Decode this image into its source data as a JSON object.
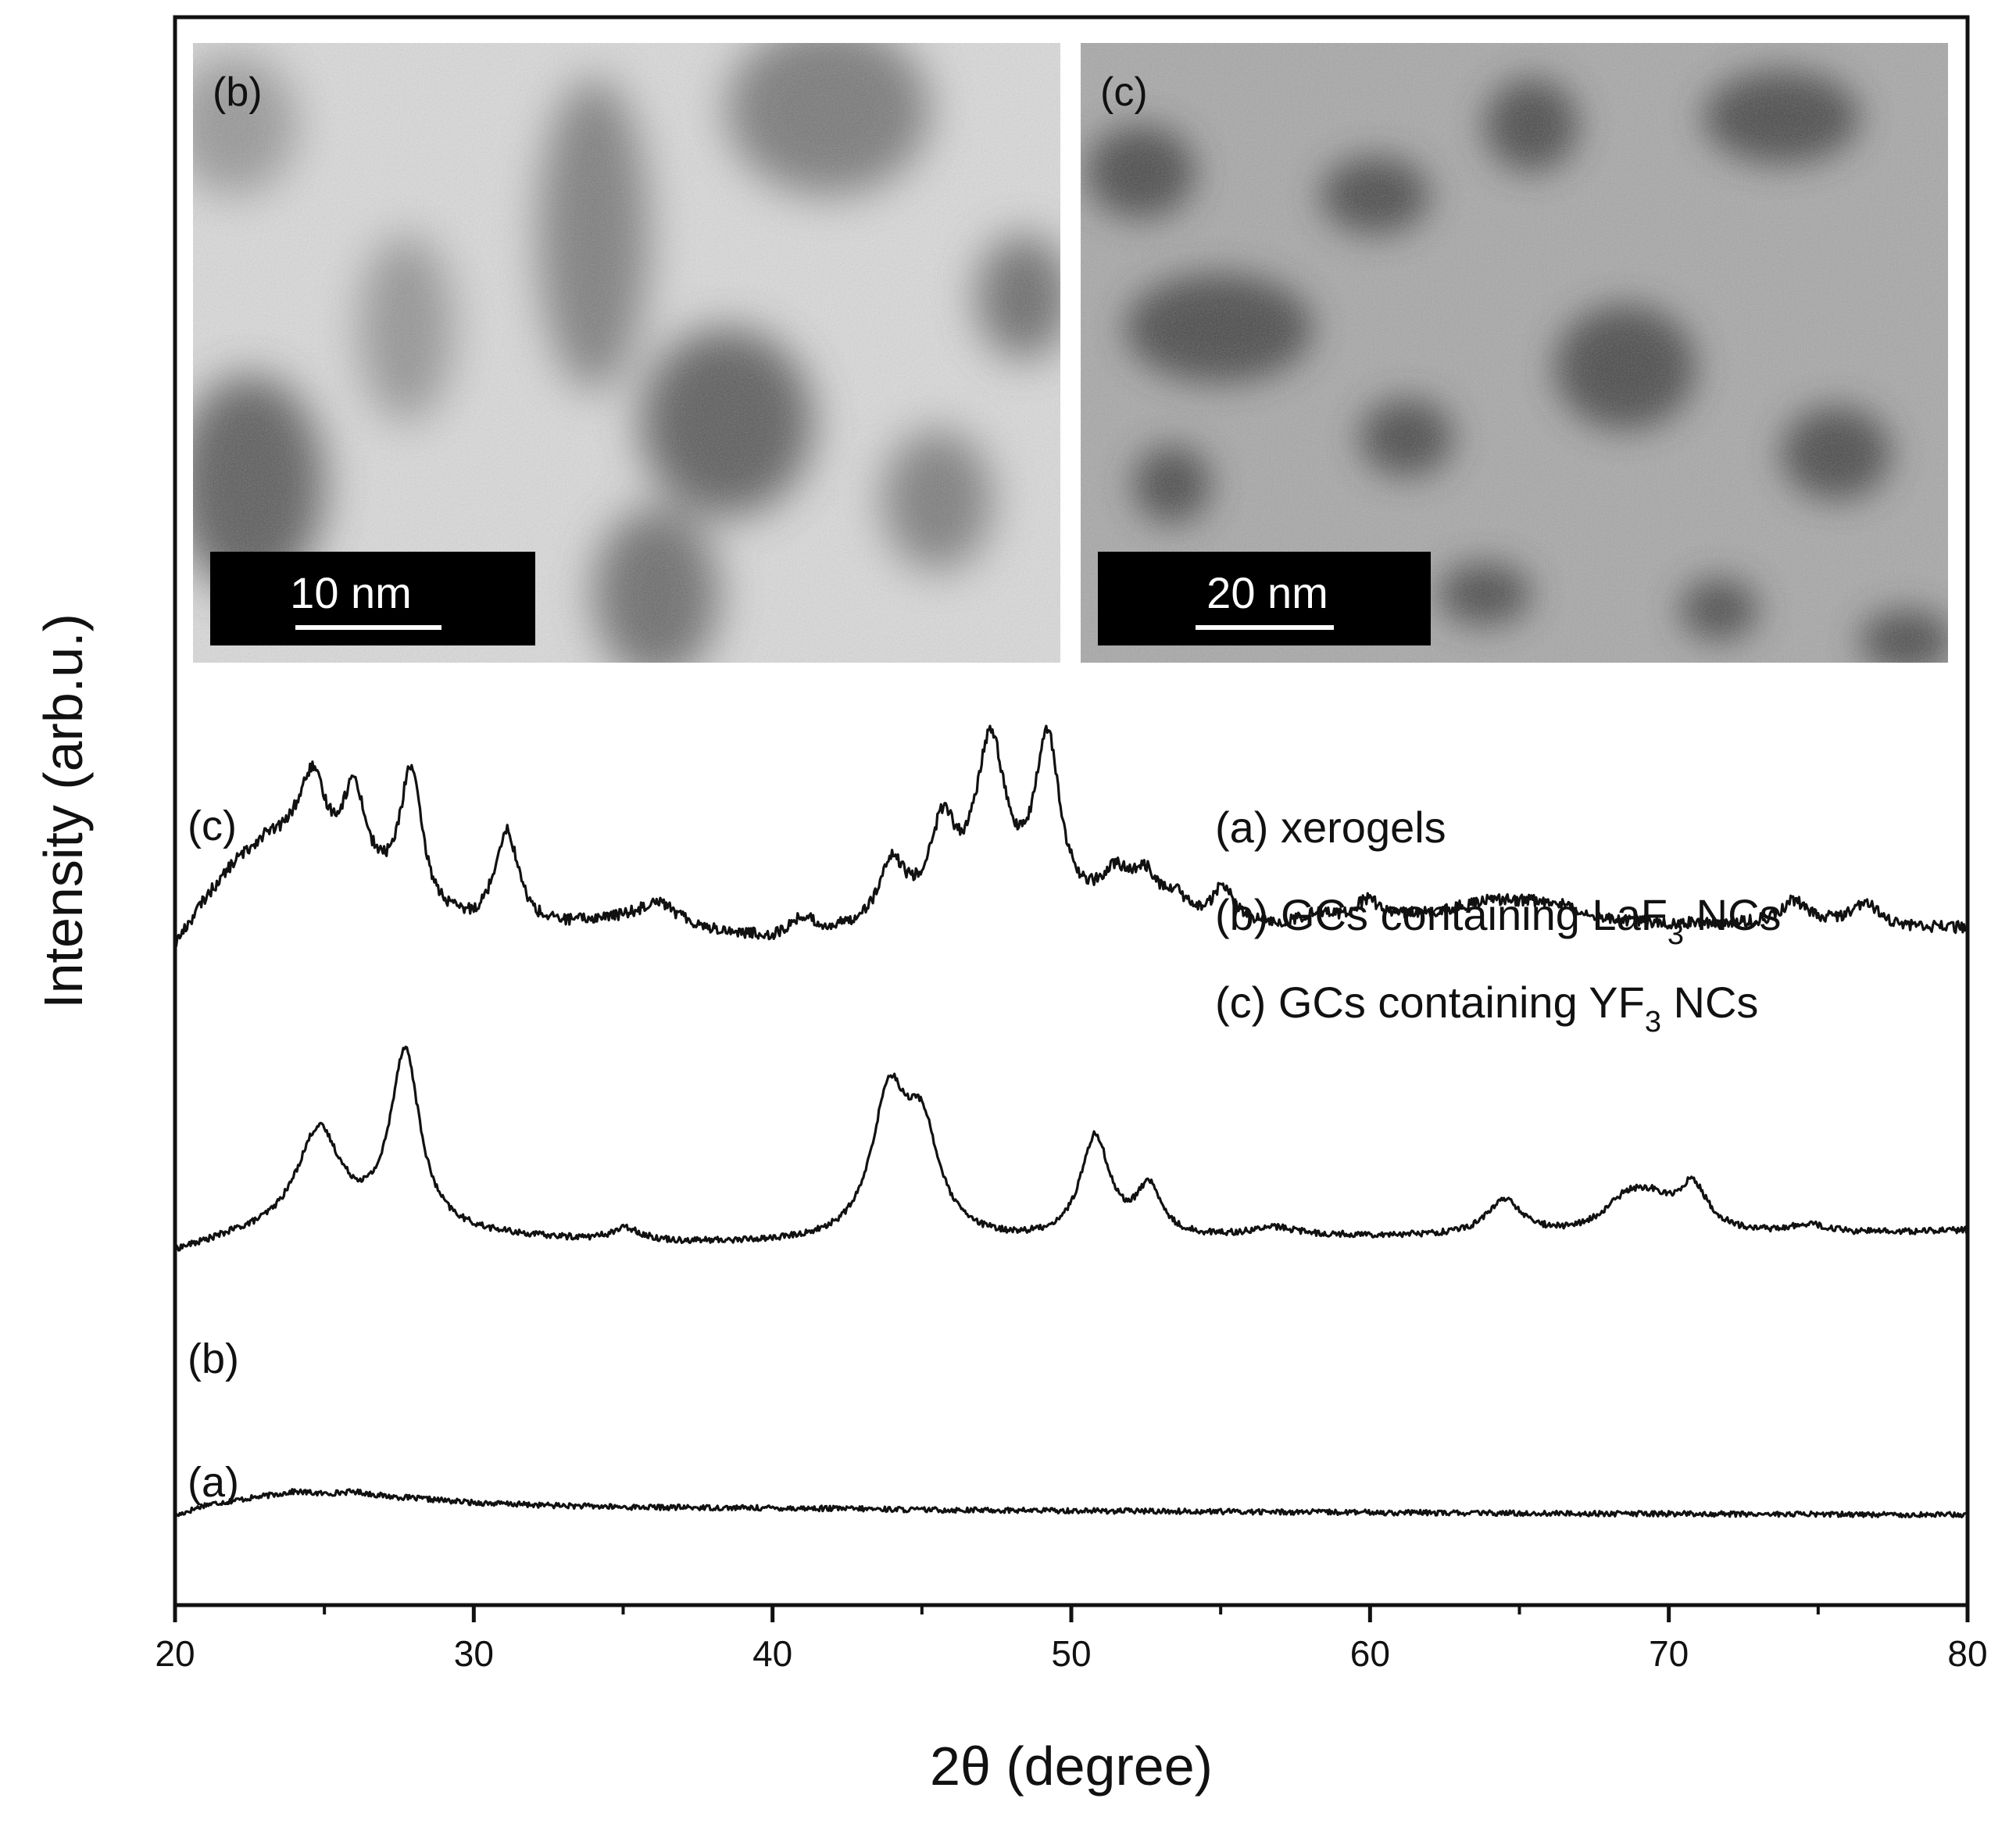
{
  "chart_data": {
    "type": "line",
    "xlabel": "2θ (degree)",
    "ylabel": "Intensity (arb.u.)",
    "xlim": [
      20,
      80
    ],
    "xticks": [
      20,
      30,
      40,
      50,
      60,
      70,
      80
    ],
    "y_ticks_shown": false,
    "grid": false,
    "legend_position": "right, below insets",
    "legend": [
      {
        "prefix": "(a) xerogels",
        "sub": "",
        "suffix": ""
      },
      {
        "prefix": "(b) GCs containing LaF",
        "sub": "3",
        "suffix": " NCs"
      },
      {
        "prefix": "(c) GCs containing YF",
        "sub": "3",
        "suffix": " NCs"
      }
    ],
    "series": [
      {
        "name": "(a)",
        "baseline": 2.0,
        "x": [
          20,
          21,
          22,
          23,
          24,
          25,
          26,
          27,
          28,
          29,
          30,
          32,
          35,
          40,
          43,
          45,
          50,
          55,
          60,
          65,
          70,
          75,
          80
        ],
        "y": [
          0.0,
          0.25,
          0.35,
          0.45,
          0.55,
          0.5,
          0.55,
          0.45,
          0.4,
          0.35,
          0.3,
          0.25,
          0.2,
          0.18,
          0.16,
          0.14,
          0.12,
          0.1,
          0.08,
          0.06,
          0.05,
          0.04,
          0.03
        ],
        "peaks": []
      },
      {
        "name": "(b)",
        "baseline": 7.9,
        "x": [
          20,
          22,
          25,
          30,
          35,
          40,
          45,
          50,
          55,
          60,
          65,
          70,
          75,
          80
        ],
        "y": [
          0.0,
          0.3,
          0.5,
          0.35,
          0.2,
          0.18,
          0.18,
          0.2,
          0.3,
          0.35,
          0.35,
          0.4,
          0.4,
          0.5
        ],
        "peaks": [
          {
            "pos": 24.8,
            "height": 2.2,
            "width": 0.9
          },
          {
            "pos": 27.7,
            "height": 4.0,
            "width": 0.6
          },
          {
            "pos": 35.1,
            "height": 0.3,
            "width": 0.6
          },
          {
            "pos": 43.9,
            "height": 3.1,
            "width": 0.7
          },
          {
            "pos": 45.0,
            "height": 2.3,
            "width": 0.7
          },
          {
            "pos": 50.8,
            "height": 2.3,
            "width": 0.6
          },
          {
            "pos": 52.6,
            "height": 1.1,
            "width": 0.5
          },
          {
            "pos": 56.8,
            "height": 0.2,
            "width": 1.0
          },
          {
            "pos": 64.5,
            "height": 0.8,
            "width": 0.7
          },
          {
            "pos": 68.6,
            "height": 0.7,
            "width": 0.9
          },
          {
            "pos": 69.5,
            "height": 0.5,
            "width": 0.8
          },
          {
            "pos": 70.8,
            "height": 1.0,
            "width": 0.6
          },
          {
            "pos": 74.7,
            "height": 0.2,
            "width": 0.8
          }
        ]
      },
      {
        "name": "(c)",
        "baseline": 14.8,
        "x": [
          20,
          21,
          22,
          23,
          24,
          26,
          28,
          30,
          32,
          34,
          36,
          38,
          40,
          42,
          44,
          46,
          48,
          50,
          52,
          54,
          56,
          58,
          60,
          62,
          64,
          66,
          68,
          70,
          72,
          74,
          76,
          78,
          80
        ],
        "y": [
          0.0,
          1.0,
          1.8,
          2.3,
          2.3,
          1.5,
          0.6,
          0.3,
          0.3,
          0.5,
          0.7,
          0.3,
          0.1,
          0.2,
          0.5,
          0.7,
          0.7,
          0.6,
          0.6,
          0.5,
          0.4,
          0.4,
          0.6,
          0.7,
          1.0,
          1.0,
          0.6,
          0.5,
          0.5,
          0.5,
          0.5,
          0.4,
          0.4
        ],
        "peaks": [
          {
            "pos": 24.6,
            "height": 1.7,
            "width": 0.5
          },
          {
            "pos": 26.0,
            "height": 1.9,
            "width": 0.45
          },
          {
            "pos": 27.9,
            "height": 3.2,
            "width": 0.45
          },
          {
            "pos": 31.1,
            "height": 2.2,
            "width": 0.5
          },
          {
            "pos": 36.2,
            "height": 0.3,
            "width": 0.5
          },
          {
            "pos": 41.0,
            "height": 0.4,
            "width": 0.5
          },
          {
            "pos": 44.0,
            "height": 1.2,
            "width": 0.5
          },
          {
            "pos": 45.7,
            "height": 1.8,
            "width": 0.5
          },
          {
            "pos": 47.3,
            "height": 3.7,
            "width": 0.6
          },
          {
            "pos": 49.2,
            "height": 3.8,
            "width": 0.5
          },
          {
            "pos": 51.5,
            "height": 0.8,
            "width": 0.6
          },
          {
            "pos": 52.5,
            "height": 0.8,
            "width": 0.5
          },
          {
            "pos": 53.5,
            "height": 0.4,
            "width": 0.4
          },
          {
            "pos": 55.1,
            "height": 0.8,
            "width": 0.4
          },
          {
            "pos": 58.2,
            "height": 0.3,
            "width": 0.5
          },
          {
            "pos": 59.9,
            "height": 0.4,
            "width": 0.5
          },
          {
            "pos": 74.2,
            "height": 0.5,
            "width": 0.5
          },
          {
            "pos": 76.6,
            "height": 0.5,
            "width": 0.5
          }
        ]
      }
    ],
    "curve_labels": [
      "(c)",
      "(b)",
      "(a)"
    ],
    "insets": [
      {
        "label": "(b)",
        "scale_bar": "10 nm",
        "tone": "light"
      },
      {
        "label": "(c)",
        "scale_bar": "20 nm",
        "tone": "dark"
      }
    ]
  }
}
